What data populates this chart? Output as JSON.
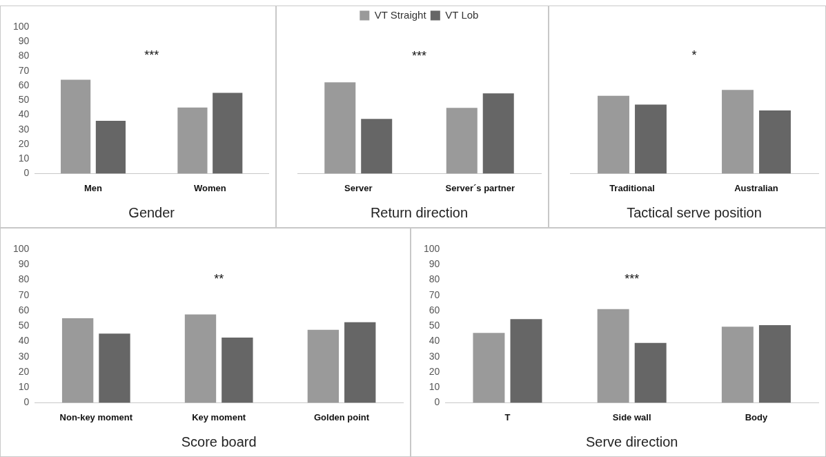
{
  "chart_data": [
    {
      "type": "bar",
      "categories": [
        "Men",
        "Women"
      ],
      "xlabel": "Gender",
      "annotations": [
        "***"
      ],
      "ylim": [
        0,
        100
      ],
      "yticks": [
        0,
        10,
        20,
        30,
        40,
        50,
        60,
        70,
        80,
        90,
        100
      ],
      "grid": false,
      "series": [
        {
          "color": "#9a9a9a",
          "values": [
            64,
            45
          ]
        },
        {
          "color": "#666666",
          "values": [
            36,
            55
          ]
        }
      ]
    },
    {
      "type": "bar",
      "categories": [
        "Server",
        "Server´s partner"
      ],
      "xlabel": "Return direction",
      "annotations": [
        "***"
      ],
      "ylim": [
        0,
        100
      ],
      "grid": false,
      "tick_labels": "x",
      "legend": "top",
      "series": [
        {
          "name": "VT Straight",
          "color": "#9a9a9a",
          "values": [
            62.5,
            45
          ]
        },
        {
          "name": "VT Lob",
          "color": "#666666",
          "values": [
            37.5,
            55
          ]
        }
      ]
    },
    {
      "type": "bar",
      "categories": [
        "Traditional",
        "Australian"
      ],
      "xlabel": "Tactical serve position",
      "annotations": [
        "*"
      ],
      "ylim": [
        0,
        100
      ],
      "grid": false,
      "tick_labels": "x",
      "series": [
        {
          "color": "#9a9a9a",
          "values": [
            53,
            57
          ]
        },
        {
          "color": "#666666",
          "values": [
            47,
            43
          ]
        }
      ]
    },
    {
      "type": "bar",
      "categories": [
        "Non-key moment",
        "Key moment",
        "Golden point"
      ],
      "xlabel": "Score board",
      "annotations": [
        "**"
      ],
      "ylim": [
        0,
        100
      ],
      "yticks": [
        0,
        10,
        20,
        30,
        40,
        50,
        60,
        70,
        80,
        90,
        100
      ],
      "grid": false,
      "series": [
        {
          "color": "#9a9a9a",
          "values": [
            55,
            57.5,
            47.5
          ]
        },
        {
          "color": "#666666",
          "values": [
            45,
            42.5,
            52.5
          ]
        }
      ]
    },
    {
      "type": "bar",
      "categories": [
        "T",
        "Side wall",
        "Body"
      ],
      "xlabel": "Serve direction",
      "annotations": [
        "***"
      ],
      "ylim": [
        0,
        100
      ],
      "yticks": [
        0,
        10,
        20,
        30,
        40,
        50,
        60,
        70,
        80,
        90,
        100
      ],
      "grid": false,
      "series": [
        {
          "color": "#9a9a9a",
          "values": [
            45.5,
            61,
            49.5
          ]
        },
        {
          "color": "#666666",
          "values": [
            54.5,
            39,
            50.5
          ]
        }
      ]
    }
  ]
}
